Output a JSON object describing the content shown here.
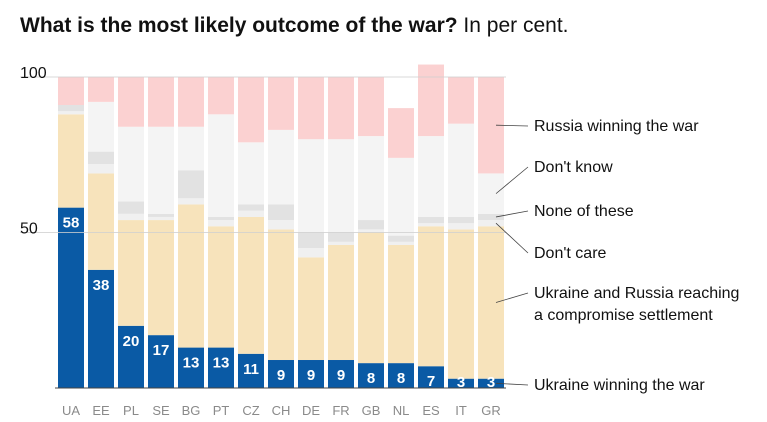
{
  "header": {
    "title": "What is the most likely outcome of the war?",
    "subtitle": "In per cent."
  },
  "chart_data": {
    "type": "bar",
    "stacked": true,
    "title": "What is the most likely outcome of the war?",
    "subtitle": "In per cent.",
    "xlabel": "",
    "ylabel": "",
    "ylim": [
      0,
      100
    ],
    "yticks": [
      50,
      100
    ],
    "grid": true,
    "legend_placement": "right (direct labels)",
    "categories": [
      "UA",
      "EE",
      "PL",
      "SE",
      "BG",
      "PT",
      "CZ",
      "CH",
      "DE",
      "FR",
      "GB",
      "NL",
      "ES",
      "IT",
      "GR"
    ],
    "series": [
      {
        "name": "Ukraine winning the war",
        "color": "#0a5aa5",
        "values": [
          58,
          38,
          20,
          17,
          13,
          13,
          11,
          9,
          9,
          9,
          8,
          8,
          7,
          3,
          3
        ]
      },
      {
        "name": "Ukraine and Russia reaching a compromise settlement",
        "color": "#f7e3bb",
        "values": [
          30,
          31,
          34,
          37,
          46,
          39,
          44,
          42,
          33,
          37,
          42,
          38,
          45,
          48,
          49
        ]
      },
      {
        "name": "Don't care",
        "color": "#f0f0f0",
        "values": [
          1,
          3,
          2,
          1,
          2,
          2,
          2,
          3,
          3,
          1,
          1,
          1,
          1,
          2,
          2
        ]
      },
      {
        "name": "None of these",
        "color": "#e2e2e2",
        "values": [
          2,
          4,
          4,
          1,
          9,
          1,
          2,
          5,
          5,
          3,
          3,
          2,
          2,
          2,
          2
        ]
      },
      {
        "name": "Don't know",
        "color": "#f4f4f4",
        "values": [
          0,
          16,
          24,
          28,
          14,
          33,
          20,
          24,
          30,
          30,
          27,
          25,
          26,
          30,
          13
        ]
      },
      {
        "name": "Russia winning the war",
        "color": "#fbd1d1",
        "values": [
          9,
          8,
          16,
          16,
          16,
          12,
          21,
          17,
          20,
          20,
          19,
          16,
          23,
          15,
          31
        ]
      }
    ],
    "labels_shown": "values of 'Ukraine winning the war' series printed on bars"
  }
}
